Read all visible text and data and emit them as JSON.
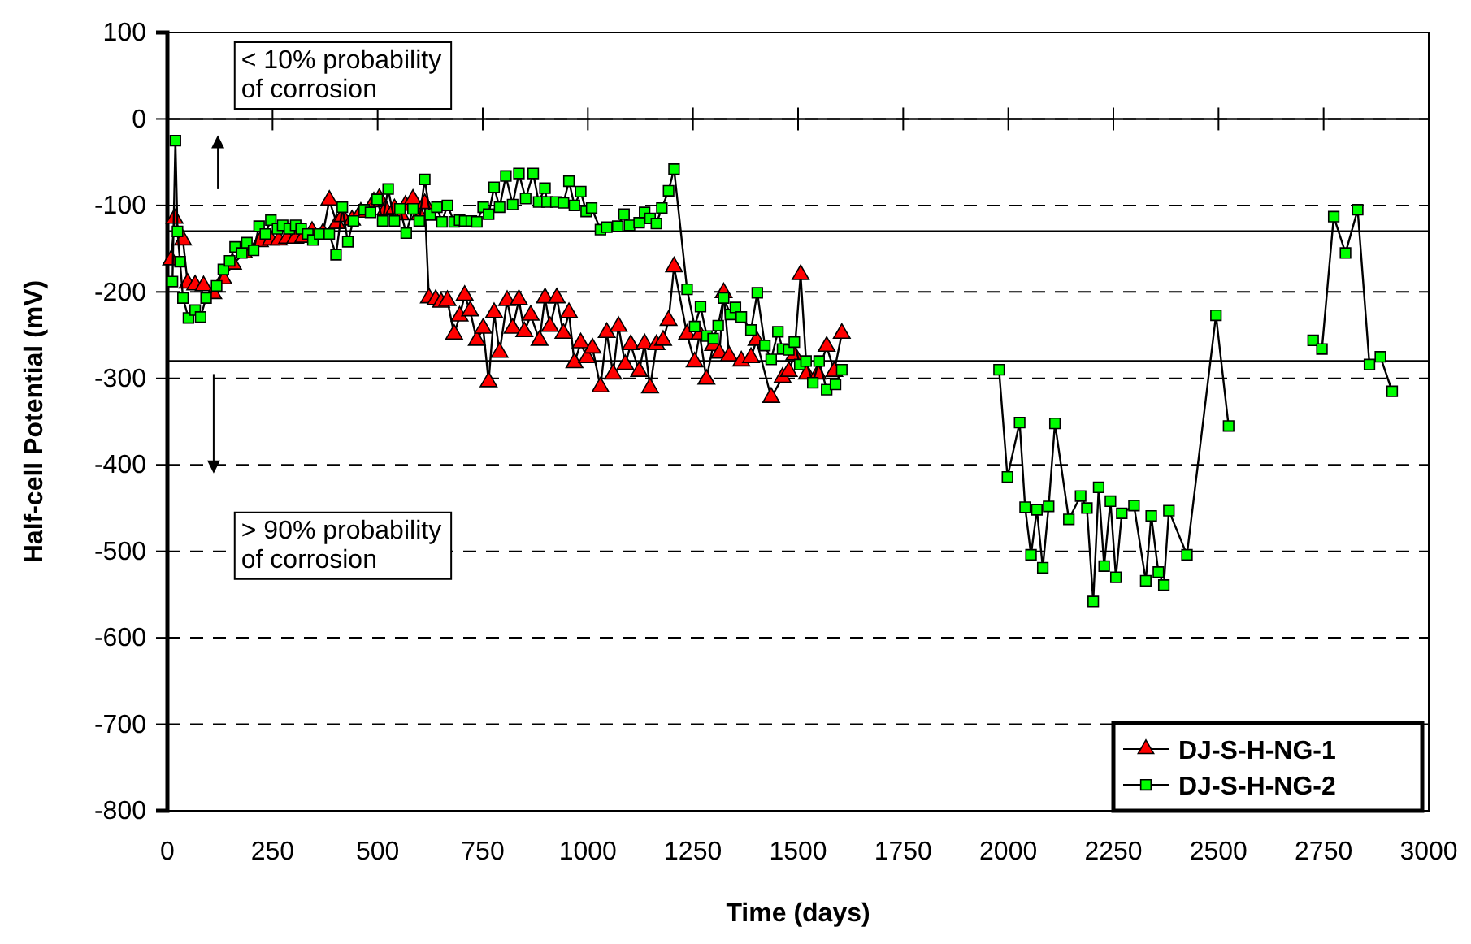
{
  "chart_data": {
    "type": "line",
    "xlabel": "Time (days)",
    "ylabel": "Half-cell Potential (mV)",
    "xlim": [
      0,
      3000
    ],
    "xticks": [
      0,
      250,
      500,
      750,
      1000,
      1250,
      1500,
      1750,
      2000,
      2250,
      2500,
      2750,
      3000
    ],
    "ylim": [
      -800,
      100
    ],
    "yticks": [
      -800,
      -700,
      -600,
      -500,
      -400,
      -300,
      -200,
      -100,
      0,
      100
    ],
    "grid": "y",
    "legend": "bottom right",
    "line_style": "solid",
    "ref_lines": [
      {
        "axis": "y",
        "value": -130,
        "color": "#000000",
        "line_style": "solid"
      },
      {
        "axis": "y",
        "value": -280,
        "color": "#000000",
        "line_style": "solid"
      }
    ],
    "annotations": [
      "< 10% probability of corrosion",
      "> 90% probability of corrosion"
    ],
    "series": [
      {
        "name": "DJ-S-H-NG-1",
        "color": "#ff0000",
        "marker": "triangle",
        "x": [
          9,
          17,
          37,
          48,
          66,
          86,
          109,
          133,
          156,
          182,
          220,
          246,
          265,
          285,
          304,
          323,
          344,
          370,
          385,
          403,
          416,
          439,
          460,
          491,
          504,
          519,
          540,
          555,
          566,
          584,
          599,
          612,
          622,
          638,
          651,
          666,
          682,
          695,
          707,
          720,
          736,
          751,
          764,
          777,
          790,
          808,
          821,
          836,
          849,
          864,
          885,
          898,
          910,
          926,
          942,
          955,
          968,
          983,
          998,
          1011,
          1030,
          1045,
          1060,
          1073,
          1089,
          1102,
          1122,
          1135,
          1148,
          1163,
          1179,
          1192,
          1205,
          1236,
          1254,
          1266,
          1282,
          1298,
          1313,
          1323,
          1336,
          1365,
          1388,
          1401,
          1436,
          1463,
          1478,
          1491,
          1506,
          1521,
          1547,
          1568,
          1586,
          1604
        ],
        "values": [
          -163,
          -115,
          -140,
          -190,
          -192,
          -193,
          -202,
          -185,
          -168,
          -155,
          -142,
          -140,
          -140,
          -138,
          -138,
          -137,
          -130,
          -132,
          -94,
          -121,
          -113,
          -117,
          -108,
          -96,
          -92,
          -105,
          -104,
          -111,
          -100,
          -93,
          -111,
          -98,
          -207,
          -209,
          -212,
          -210,
          -249,
          -228,
          -204,
          -222,
          -256,
          -242,
          -304,
          -224,
          -270,
          -210,
          -242,
          -209,
          -246,
          -227,
          -256,
          -207,
          -240,
          -207,
          -248,
          -224,
          -282,
          -259,
          -276,
          -265,
          -310,
          -247,
          -295,
          -240,
          -284,
          -261,
          -292,
          -260,
          -311,
          -261,
          -256,
          -233,
          -171,
          -249,
          -281,
          -249,
          -301,
          -262,
          -271,
          -201,
          -274,
          -280,
          -276,
          -256,
          -322,
          -299,
          -292,
          -273,
          -180,
          -295,
          -295,
          -263,
          -292,
          -248
        ]
      },
      {
        "name": "DJ-S-H-NG-2",
        "color": "#00ff00",
        "marker": "square",
        "x": [
          12,
          19,
          24,
          30,
          37,
          50,
          66,
          79,
          92,
          117,
          133,
          148,
          161,
          177,
          189,
          205,
          218,
          233,
          246,
          262,
          274,
          290,
          305,
          318,
          334,
          346,
          362,
          385,
          401,
          416,
          429,
          442,
          468,
          483,
          499,
          512,
          525,
          540,
          553,
          568,
          584,
          599,
          612,
          625,
          641,
          653,
          666,
          682,
          695,
          707,
          723,
          736,
          751,
          764,
          777,
          790,
          805,
          821,
          836,
          852,
          870,
          883,
          898,
          903,
          924,
          942,
          955,
          968,
          983,
          996,
          1009,
          1030,
          1045,
          1071,
          1086,
          1099,
          1122,
          1135,
          1148,
          1163,
          1176,
          1192,
          1205,
          1236,
          1254,
          1268,
          1283,
          1298,
          1310,
          1323,
          1339,
          1351,
          1365,
          1388,
          1403,
          1421,
          1436,
          1452,
          1463,
          1478,
          1491,
          1504,
          1519,
          1535,
          1550,
          1568,
          1589,
          1604,
          null,
          1978,
          1998,
          2027,
          2040,
          2054,
          2068,
          2082,
          2096,
          2111,
          2144,
          2172,
          2187,
          2202,
          2215,
          2228,
          2243,
          2256,
          2270,
          2299,
          2327,
          2340,
          2357,
          2370,
          2382,
          2425,
          2494,
          2524,
          null,
          2725,
          2746,
          2774,
          2802,
          2831,
          2859,
          2885,
          2913
        ],
        "values": [
          -188,
          -25,
          -130,
          -165,
          -207,
          -230,
          -221,
          -229,
          -207,
          -193,
          -174,
          -164,
          -148,
          -155,
          -143,
          -152,
          -124,
          -133,
          -117,
          -127,
          -123,
          -127,
          -123,
          -127,
          -133,
          -140,
          -133,
          -133,
          -157,
          -102,
          -142,
          -118,
          -105,
          -108,
          -93,
          -118,
          -81,
          -118,
          -104,
          -132,
          -104,
          -118,
          -70,
          -111,
          -102,
          -119,
          -100,
          -119,
          -117,
          -118,
          -118,
          -119,
          -102,
          -110,
          -79,
          -102,
          -66,
          -99,
          -63,
          -92,
          -63,
          -96,
          -80,
          -96,
          -96,
          -97,
          -72,
          -100,
          -84,
          -107,
          -103,
          -128,
          -125,
          -124,
          -110,
          -123,
          -120,
          -108,
          -115,
          -121,
          -103,
          -83,
          -58,
          -197,
          -240,
          -217,
          -251,
          -254,
          -239,
          -207,
          -226,
          -218,
          -229,
          -244,
          -201,
          -262,
          -278,
          -246,
          -266,
          -267,
          -258,
          -284,
          -280,
          -305,
          -280,
          -313,
          -307,
          -290,
          null,
          -290,
          -414,
          -351,
          -449,
          -504,
          -452,
          -519,
          -448,
          -352,
          -463,
          -436,
          -450,
          -558,
          -426,
          -517,
          -442,
          -530,
          -456,
          -447,
          -534,
          -459,
          -524,
          -539,
          -453,
          -504,
          -227,
          -355,
          null,
          -256,
          -266,
          -113,
          -155,
          -105,
          -284,
          -275,
          -315
        ]
      }
    ]
  }
}
